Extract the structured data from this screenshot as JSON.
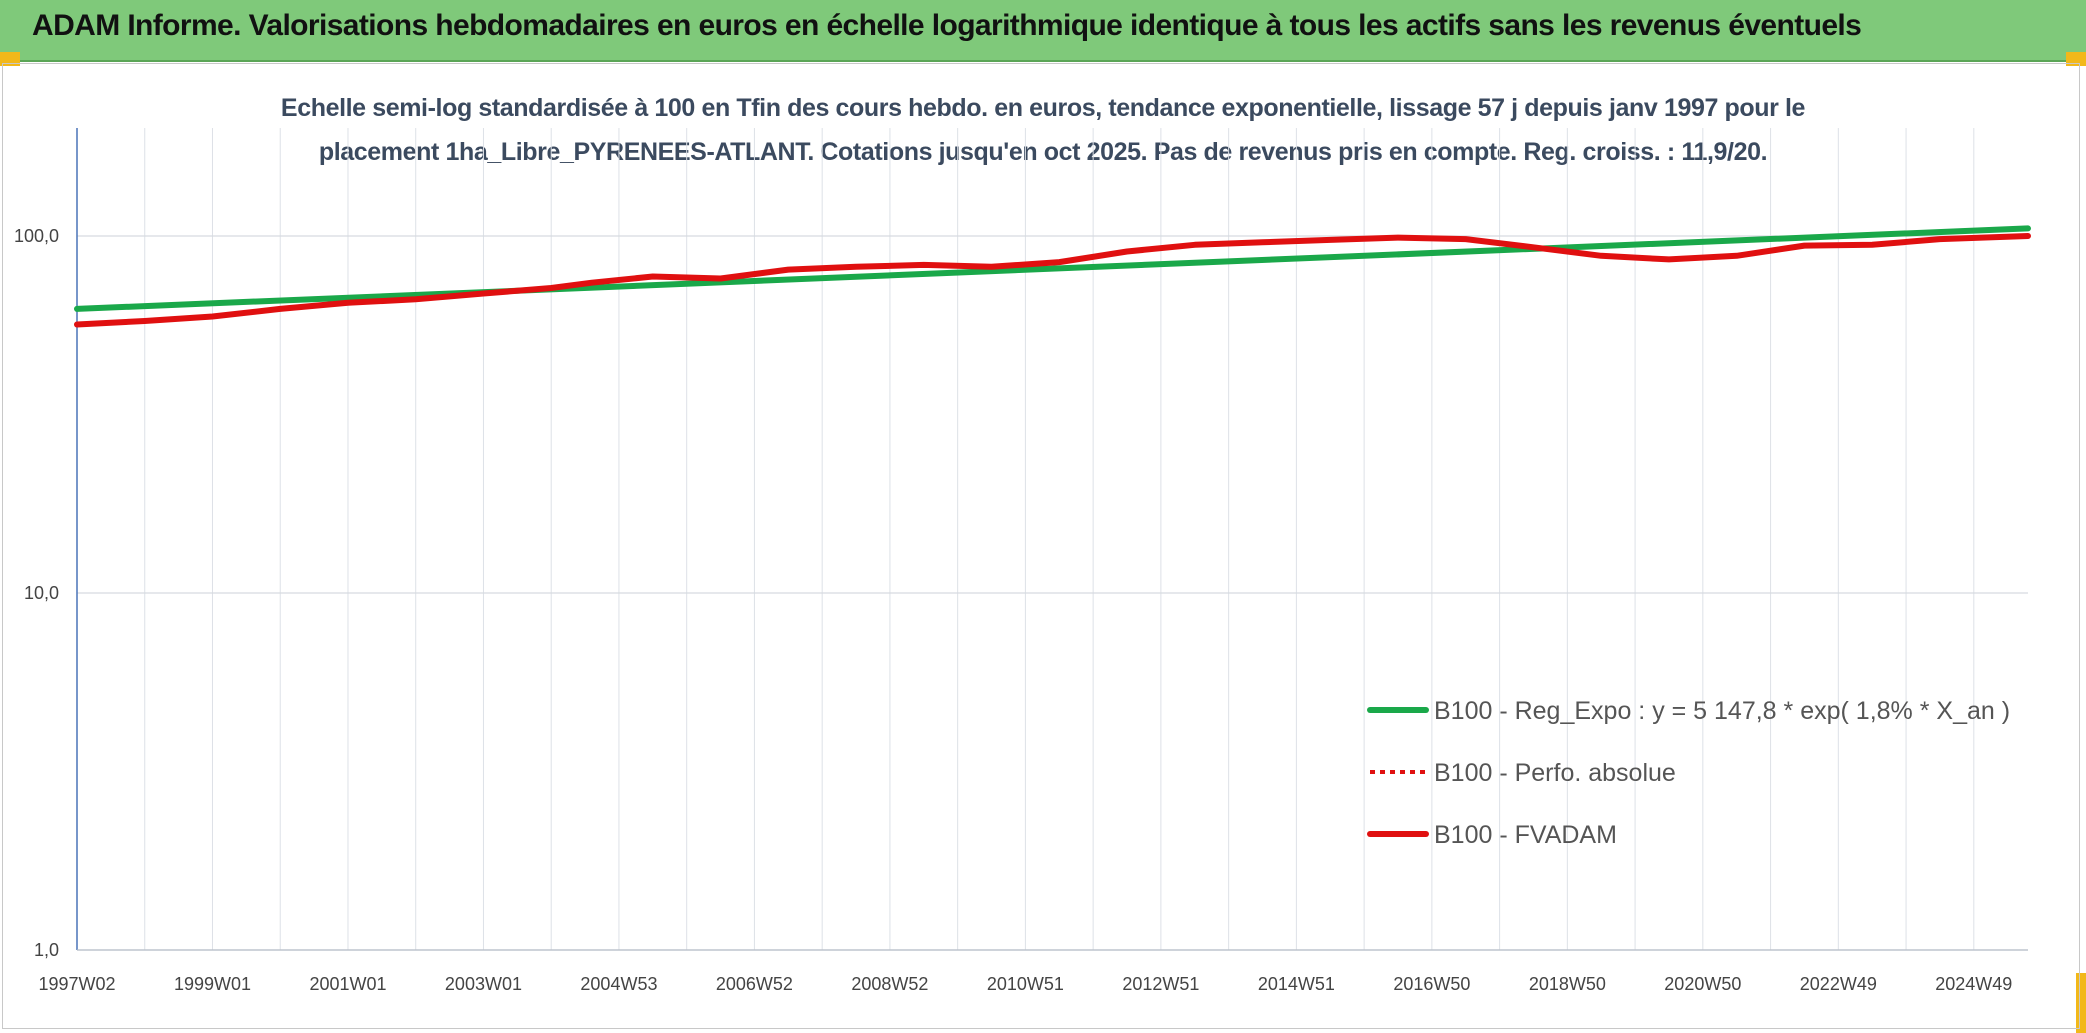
{
  "banner": {
    "title": "ADAM Informe. Valorisations hebdomadaires en euros en échelle logarithmique identique à tous les actifs sans les revenus éventuels"
  },
  "chart_data": {
    "type": "line",
    "title_line1": "Echelle semi-log standardisée à 100 en Tfin des cours hebdo. en euros, tendance exponentielle, lissage 57 j depuis janv 1997 pour le",
    "title_line2": "placement 1ha_Libre_PYRENEES-ATLANT. Cotations jusqu'en oct 2025. Pas de revenus pris en compte. Reg. croiss. : 11,9/20.",
    "y_scale": "log",
    "ylim": [
      1,
      200
    ],
    "y_ticks": [
      {
        "value": 1,
        "label": "1,0"
      },
      {
        "value": 10,
        "label": "10,0"
      },
      {
        "value": 100,
        "label": "100,0"
      }
    ],
    "x_range": [
      1997.0,
      2025.8
    ],
    "x_ticks": [
      {
        "x": 1997.0,
        "label": "1997W02"
      },
      {
        "x": 1999.0,
        "label": "1999W01"
      },
      {
        "x": 2001.0,
        "label": "2001W01"
      },
      {
        "x": 2003.0,
        "label": "2003W01"
      },
      {
        "x": 2005.0,
        "label": "2004W53"
      },
      {
        "x": 2007.0,
        "label": "2006W52"
      },
      {
        "x": 2009.0,
        "label": "2008W52"
      },
      {
        "x": 2011.0,
        "label": "2010W51"
      },
      {
        "x": 2013.0,
        "label": "2012W51"
      },
      {
        "x": 2015.0,
        "label": "2014W51"
      },
      {
        "x": 2017.0,
        "label": "2016W50"
      },
      {
        "x": 2019.0,
        "label": "2018W50"
      },
      {
        "x": 2021.0,
        "label": "2020W50"
      },
      {
        "x": 2023.0,
        "label": "2022W49"
      },
      {
        "x": 2025.0,
        "label": "2024W49"
      }
    ],
    "grid": true,
    "legend_position": "bottom-right",
    "series": [
      {
        "name": "B100 - Reg_Expo : y = 5 147,8 * exp( 1,8% *  X_an )",
        "color": "#1aa84a",
        "style": "solid",
        "points": [
          [
            1997.0,
            62.5
          ],
          [
            2025.8,
            105.0
          ]
        ]
      },
      {
        "name": "B100 - Perfo. absolue",
        "color": "#e01010",
        "style": "dotted",
        "points": []
      },
      {
        "name": "B100 - FVADAM",
        "color": "#e01010",
        "style": "solid",
        "points": [
          [
            1997.0,
            56.5
          ],
          [
            1998.0,
            57.8
          ],
          [
            1999.0,
            59.5
          ],
          [
            2000.0,
            62.5
          ],
          [
            2001.0,
            65.0
          ],
          [
            2002.0,
            66.5
          ],
          [
            2003.0,
            69.0
          ],
          [
            2004.0,
            71.5
          ],
          [
            2004.6,
            74.0
          ],
          [
            2005.5,
            77.0
          ],
          [
            2006.5,
            76.0
          ],
          [
            2007.5,
            80.5
          ],
          [
            2008.5,
            82.0
          ],
          [
            2009.5,
            83.0
          ],
          [
            2010.5,
            82.0
          ],
          [
            2011.5,
            84.5
          ],
          [
            2012.5,
            90.5
          ],
          [
            2013.5,
            94.5
          ],
          [
            2014.5,
            96.0
          ],
          [
            2015.5,
            97.5
          ],
          [
            2016.5,
            99.0
          ],
          [
            2017.5,
            98.0
          ],
          [
            2018.5,
            93.0
          ],
          [
            2019.5,
            88.0
          ],
          [
            2020.5,
            86.0
          ],
          [
            2021.5,
            88.0
          ],
          [
            2022.5,
            94.0
          ],
          [
            2023.5,
            94.5
          ],
          [
            2024.5,
            98.0
          ],
          [
            2025.8,
            100.0
          ]
        ]
      }
    ]
  }
}
